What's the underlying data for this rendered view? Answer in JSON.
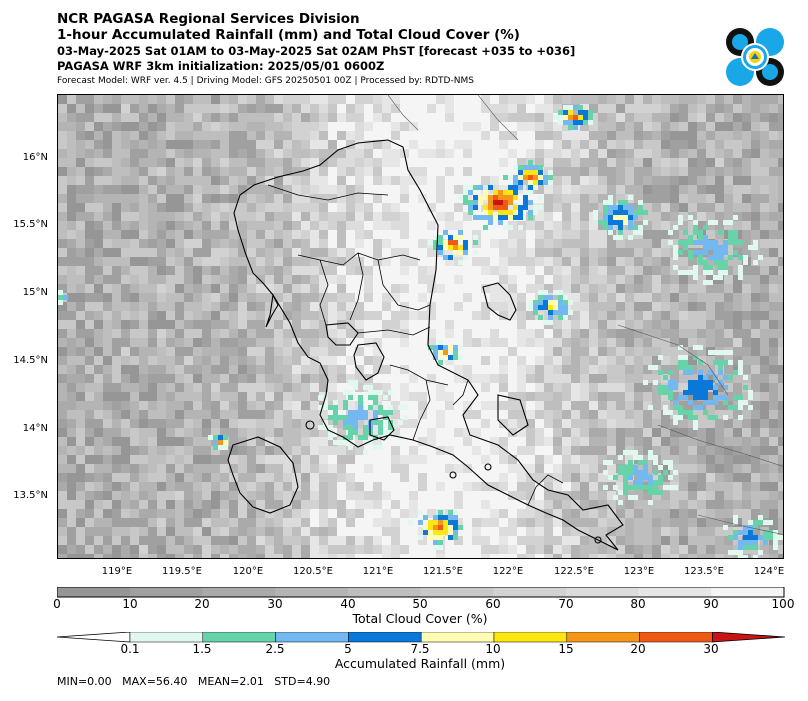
{
  "header": {
    "title_line1": "NCR PAGASA Regional Services Division",
    "title_line2": "1-hour Accumulated Rainfall (mm) and Total Cloud Cover (%)",
    "title_line3": "03-May-2025 Sat 01AM to 03-May-2025 Sat 02AM PhST [forecast +035 to +036]",
    "title_line4": "PAGASA WRF 3km initialization: 2025/05/01 0600Z",
    "subtitle": "Forecast Model: WRF ver. 4.5 | Driving Model: GFS 20250501 00Z | Processed by: RDTD-NMS"
  },
  "logo": {
    "icon": "pagasa-seal-icon"
  },
  "map": {
    "lat_ticks": [
      "16°N",
      "15.5°N",
      "15°N",
      "14.5°N",
      "14°N",
      "13.5°N"
    ],
    "lon_ticks": [
      "119°E",
      "119.5°E",
      "120°E",
      "120.5°E",
      "121°E",
      "121.5°E",
      "122°E",
      "122.5°E",
      "123°E",
      "123.5°E",
      "124°E"
    ],
    "lat_range": [
      13.05,
      16.5
    ],
    "lon_range": [
      118.55,
      124.1
    ]
  },
  "cloud_colorbar": {
    "title": "Total Cloud Cover (%)",
    "ticks": [
      "0",
      "10",
      "20",
      "30",
      "40",
      "50",
      "60",
      "70",
      "80",
      "90",
      "100"
    ],
    "colors": [
      "#969696",
      "#a0a0a0",
      "#aaaaaa",
      "#b4b4b4",
      "#bebebe",
      "#c8c8c8",
      "#d2d2d2",
      "#dcdcdc",
      "#e6e6e6",
      "#f5f5f5"
    ]
  },
  "rain_colorbar": {
    "title": "Accumulated Rainfall (mm)",
    "ticks": [
      "0.1",
      "1.5",
      "2.5",
      "5",
      "7.5",
      "10",
      "15",
      "20",
      "30"
    ],
    "colors": [
      "#ffffff",
      "#e0f8ee",
      "#66d4a8",
      "#73b8f0",
      "#0a78d8",
      "#fffcb4",
      "#fde613",
      "#f5961a",
      "#ee5a14",
      "#c81414"
    ]
  },
  "stats": {
    "text": "MIN=0.00   MAX=56.40   MEAN=2.01   STD=4.90"
  }
}
